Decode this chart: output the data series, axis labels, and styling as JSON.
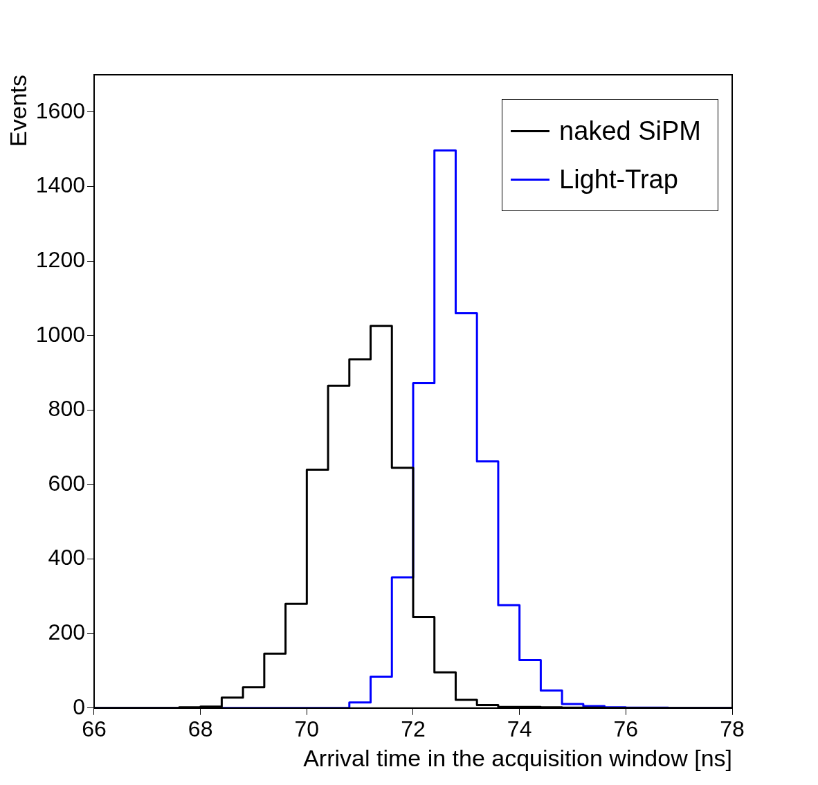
{
  "chart_data": {
    "type": "histogram",
    "xlabel": "Arrival time in the acquisition window [ns]",
    "ylabel": "Events",
    "bins": [
      66,
      66.4,
      66.8,
      67.2,
      67.6,
      68,
      68.4,
      68.8,
      69.2,
      69.6,
      70,
      70.4,
      70.8,
      71.2,
      71.6,
      72,
      72.4,
      72.8,
      73.2,
      73.6,
      74,
      74.4,
      74.8,
      75.2,
      75.6,
      76,
      76.4,
      76.8,
      77.2,
      77.6,
      78
    ],
    "series": [
      {
        "name": "naked SiPM",
        "color": "#000000",
        "values": [
          0,
          0,
          0,
          0,
          2,
          4,
          28,
          56,
          146,
          280,
          640,
          865,
          936,
          1026,
          645,
          244,
          96,
          22,
          8,
          3,
          3,
          2,
          1,
          1,
          0,
          0,
          0,
          0,
          0,
          0
        ]
      },
      {
        "name": "Light-Trap",
        "color": "#0000ff",
        "values": [
          0,
          0,
          0,
          0,
          0,
          0,
          0,
          0,
          0,
          0,
          0,
          0,
          15,
          84,
          351,
          872,
          1497,
          1060,
          662,
          276,
          129,
          47,
          11,
          5,
          2,
          1,
          1,
          0,
          0,
          0
        ]
      }
    ],
    "xlim": [
      66,
      78
    ],
    "xticks": [
      66,
      68,
      70,
      72,
      74,
      76,
      78
    ],
    "ylim": [
      0,
      1700
    ],
    "yticks": [
      0,
      200,
      400,
      600,
      800,
      1000,
      1200,
      1400,
      1600
    ],
    "legend": "top right"
  }
}
